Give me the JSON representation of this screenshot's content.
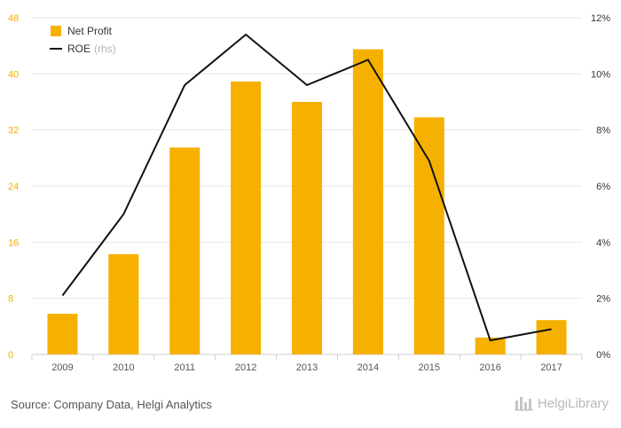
{
  "chart_data": {
    "type": "bar+line",
    "categories": [
      "2009",
      "2010",
      "2011",
      "2012",
      "2013",
      "2014",
      "2015",
      "2016",
      "2017"
    ],
    "series": [
      {
        "name": "Net Profit",
        "type": "bar",
        "axis": "left",
        "values": [
          5.8,
          14.3,
          29.5,
          38.9,
          36.0,
          43.5,
          33.8,
          2.4,
          4.9
        ]
      },
      {
        "name": "ROE",
        "name_suffix": "(rhs)",
        "type": "line",
        "axis": "right",
        "values": [
          2.1,
          5.0,
          9.6,
          11.4,
          9.6,
          10.5,
          6.9,
          0.5,
          0.9
        ]
      }
    ],
    "y_left": {
      "min": 0,
      "max": 48,
      "ticks": [
        "0",
        "8",
        "16",
        "24",
        "32",
        "40",
        "48"
      ]
    },
    "y_right": {
      "min": 0,
      "max": 12,
      "ticks": [
        "0%",
        "2%",
        "4%",
        "6%",
        "8%",
        "10%",
        "12%"
      ]
    },
    "grid": true,
    "legend_position": "top-left",
    "colors": {
      "bar": "#F5B000",
      "line": "#111111",
      "grid": "#e6e6e6",
      "left_ticks": "#F5B000",
      "right_ticks": "#333333"
    }
  },
  "footer": {
    "source": "Source: Company Data, Helgi Analytics",
    "brand": "HelgiLibrary",
    "logo_icon": "helgi-logo-icon"
  }
}
